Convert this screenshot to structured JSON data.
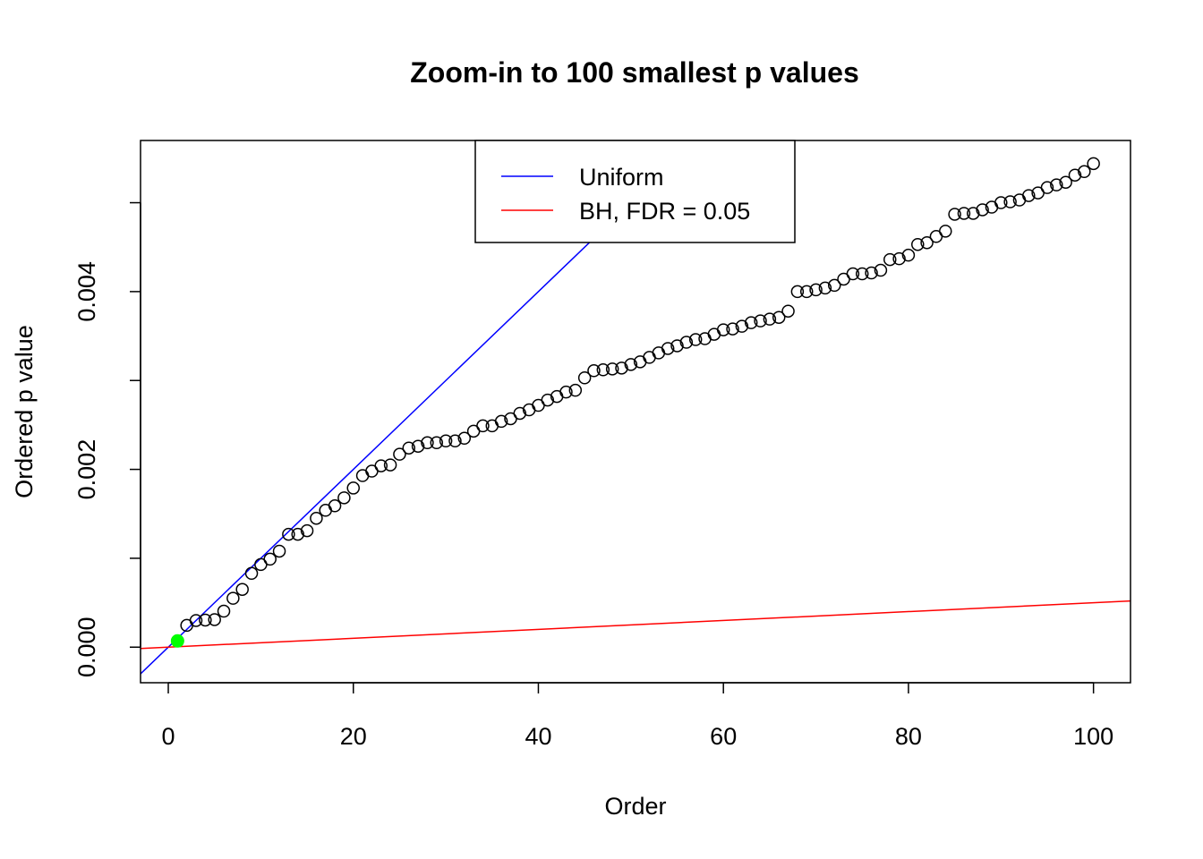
{
  "chart_data": {
    "type": "scatter",
    "title": "Zoom-in to 100 smallest p values",
    "xlabel": "Order",
    "ylabel": "Ordered p value",
    "xlim": [
      -3,
      104
    ],
    "ylim": [
      -0.0004,
      0.0057
    ],
    "x_ticks": [
      0,
      20,
      40,
      60,
      80,
      100
    ],
    "x_tick_labels": [
      "0",
      "20",
      "40",
      "60",
      "80",
      "100"
    ],
    "y_ticks": [
      0.0,
      0.001,
      0.002,
      0.003,
      0.004,
      0.005
    ],
    "y_tick_labels": [
      "0.000",
      "",
      "0.002",
      "",
      "0.004",
      ""
    ],
    "grid": false,
    "legend_position": "top",
    "series": [
      {
        "kind": "points",
        "x": [
          1,
          2,
          3,
          4,
          5,
          6,
          7,
          8,
          9,
          10,
          11,
          12,
          13,
          14,
          15,
          16,
          17,
          18,
          19,
          20,
          21,
          22,
          23,
          24,
          25,
          26,
          27,
          28,
          29,
          30,
          31,
          32,
          33,
          34,
          35,
          36,
          37,
          38,
          39,
          40,
          41,
          42,
          43,
          44,
          45,
          46,
          47,
          48,
          49,
          50,
          51,
          52,
          53,
          54,
          55,
          56,
          57,
          58,
          59,
          60,
          61,
          62,
          63,
          64,
          65,
          66,
          67,
          68,
          69,
          70,
          71,
          72,
          73,
          74,
          75,
          76,
          77,
          78,
          79,
          80,
          81,
          82,
          83,
          84,
          85,
          86,
          87,
          88,
          89,
          90,
          91,
          92,
          93,
          94,
          95,
          96,
          97,
          98,
          99,
          100
        ],
        "y": [
          7e-05,
          0.000245,
          0.0003,
          0.000305,
          0.00031,
          0.000405,
          0.00055,
          0.00065,
          0.00083,
          0.00093,
          0.00099,
          0.00108,
          0.00127,
          0.00127,
          0.00131,
          0.00145,
          0.00154,
          0.00159,
          0.00168,
          0.00179,
          0.00193,
          0.00198,
          0.00204,
          0.00205,
          0.00217,
          0.00224,
          0.00226,
          0.0023,
          0.0023,
          0.00232,
          0.00232,
          0.00235,
          0.00243,
          0.00249,
          0.00249,
          0.00254,
          0.00257,
          0.00263,
          0.00267,
          0.00272,
          0.00278,
          0.00282,
          0.00287,
          0.00289,
          0.00303,
          0.00311,
          0.00312,
          0.00313,
          0.00314,
          0.00318,
          0.00321,
          0.00326,
          0.00331,
          0.00336,
          0.00339,
          0.00343,
          0.00346,
          0.00347,
          0.00352,
          0.00357,
          0.00358,
          0.00361,
          0.00365,
          0.00367,
          0.00369,
          0.00371,
          0.00378,
          0.004,
          0.004,
          0.00402,
          0.00404,
          0.00407,
          0.00414,
          0.0042,
          0.0042,
          0.00421,
          0.00424,
          0.00436,
          0.00437,
          0.00441,
          0.00453,
          0.00455,
          0.00462,
          0.00468,
          0.00487,
          0.00488,
          0.00488,
          0.00492,
          0.00495,
          0.005,
          0.00501,
          0.00503,
          0.00508,
          0.00511,
          0.00517,
          0.0052,
          0.00523,
          0.00531,
          0.00535,
          0.00544
        ],
        "highlight": {
          "x": 1,
          "y": 7e-05,
          "color": "#00ff00"
        }
      },
      {
        "name": "Uniform",
        "kind": "line",
        "intercept": 0.0,
        "slope": 0.0001,
        "color": "#0000ff"
      },
      {
        "name": "BH, FDR = 0.05",
        "kind": "line",
        "intercept": 0.0,
        "slope": 5e-06,
        "color": "#ff0000"
      }
    ]
  }
}
